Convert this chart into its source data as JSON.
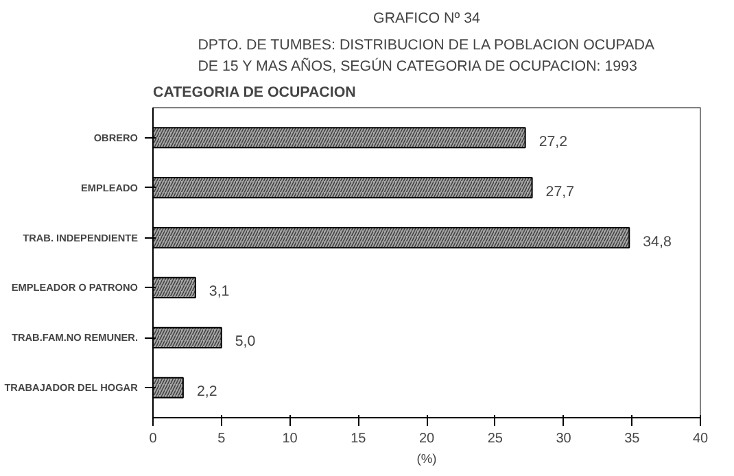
{
  "chart_data": {
    "type": "bar",
    "orientation": "horizontal",
    "title": "GRAFICO Nº 34",
    "subtitle": "DPTO. DE TUMBES: DISTRIBUCION DE LA POBLACION OCUPADA\nDE 15 Y MAS AÑOS, SEGÚN CATEGORIA DE OCUPACION: 1993",
    "ylabel": "CATEGORIA DE OCUPACION",
    "xlabel": "(%)",
    "categories": [
      "OBRERO",
      "EMPLEADO",
      "TRAB. INDEPENDIENTE",
      "EMPLEADOR O PATRONO",
      "TRAB.FAM.NO REMUNER.",
      "TRABAJADOR DEL HOGAR"
    ],
    "values": [
      27.2,
      27.7,
      34.8,
      3.1,
      5.0,
      2.2
    ],
    "value_labels": [
      "27,2",
      "27,7",
      "34,8",
      "3,1",
      "5,0",
      "2,2"
    ],
    "color": "#a6a6a6",
    "xlim": [
      0,
      40
    ],
    "xticks": [
      0,
      5,
      10,
      15,
      20,
      25,
      30,
      35,
      40
    ],
    "grid": false
  }
}
